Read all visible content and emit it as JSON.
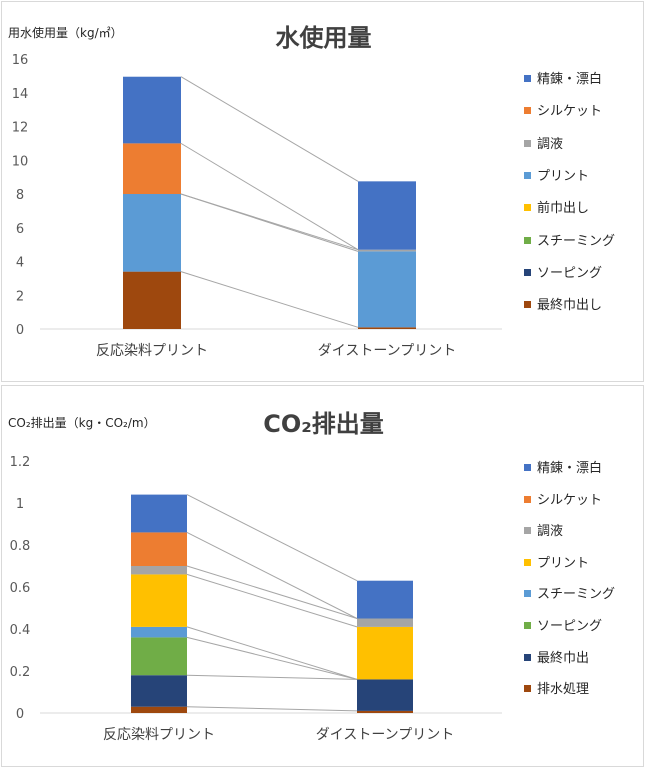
{
  "chart_data": [
    {
      "type": "bar",
      "stacked": true,
      "title": "水使用量",
      "unit_label": "用水使用量（kg/㎡）",
      "categories": [
        "反応染料プリント",
        "ダイストーンプリント"
      ],
      "ylim": [
        0,
        16
      ],
      "yticks": [
        "0",
        "2",
        "4",
        "6",
        "8",
        "10",
        "12",
        "14",
        "16"
      ],
      "grid": false,
      "legend_position": "right",
      "series": [
        {
          "name": "最終巾出し",
          "color": "#9e480e",
          "values": [
            3.4,
            0.1
          ]
        },
        {
          "name": "ソーピング",
          "color": "#264478",
          "values": [
            0,
            0
          ]
        },
        {
          "name": "スチーミング",
          "color": "#70ad47",
          "values": [
            0,
            0
          ]
        },
        {
          "name": "前巾出し",
          "color": "#ffc000",
          "values": [
            0,
            0
          ]
        },
        {
          "name": "プリント",
          "color": "#5b9bd5",
          "values": [
            4.6,
            4.5
          ]
        },
        {
          "name": "調液",
          "color": "#a5a5a5",
          "values": [
            0,
            0.1
          ]
        },
        {
          "name": "シルケット",
          "color": "#ed7d31",
          "values": [
            3.0,
            0
          ]
        },
        {
          "name": "精錬・漂白",
          "color": "#4472c4",
          "values": [
            3.95,
            4.05
          ]
        }
      ]
    },
    {
      "type": "bar",
      "stacked": true,
      "title": "CO₂排出量",
      "unit_label": "CO₂排出量（kg・CO₂/m）",
      "categories": [
        "反応染料プリント",
        "ダイストーンプリント"
      ],
      "ylim": [
        0,
        1.2
      ],
      "yticks": [
        "0",
        "0.2",
        "0.4",
        "0.6",
        "0.8",
        "1",
        "1.2"
      ],
      "grid": false,
      "legend_position": "right",
      "series": [
        {
          "name": "排水処理",
          "color": "#9e480e",
          "values": [
            0.03,
            0.01
          ]
        },
        {
          "name": "最終巾出",
          "color": "#264478",
          "values": [
            0.15,
            0.15
          ]
        },
        {
          "name": "ソーピング",
          "color": "#70ad47",
          "values": [
            0.18,
            0
          ]
        },
        {
          "name": "スチーミング",
          "color": "#5b9bd5",
          "values": [
            0.05,
            0
          ]
        },
        {
          "name": "プリント",
          "color": "#ffc000",
          "values": [
            0.25,
            0.25
          ]
        },
        {
          "name": "調液",
          "color": "#a5a5a5",
          "values": [
            0.04,
            0.04
          ]
        },
        {
          "name": "シルケット",
          "color": "#ed7d31",
          "values": [
            0.16,
            0
          ]
        },
        {
          "name": "精錬・漂白",
          "color": "#4472c4",
          "values": [
            0.18,
            0.18
          ]
        }
      ]
    }
  ]
}
